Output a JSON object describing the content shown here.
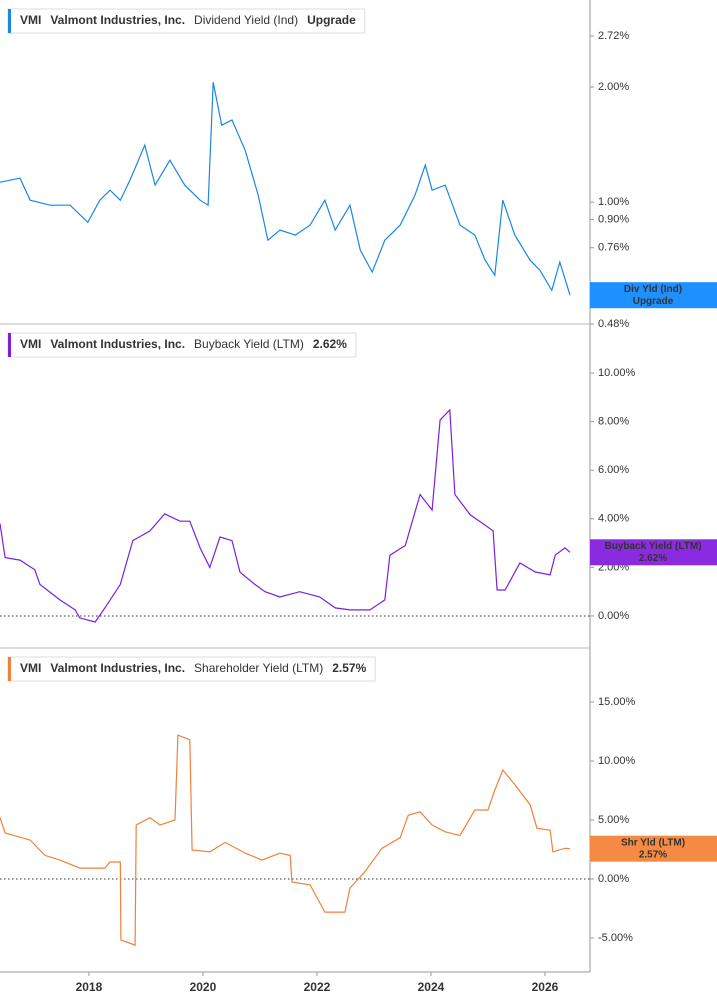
{
  "chart_data": [
    {
      "type": "line",
      "ticker": "VMI",
      "company": "Valmont Industries, Inc.",
      "title": "Dividend Yield (Ind)",
      "legend_value": "Upgrade",
      "color": "#1a87e0",
      "label_color": "#1e90ff",
      "log_scale": true,
      "end_label": {
        "name": "Div Yld (Ind)",
        "value": "Upgrade"
      },
      "xlim": [
        2016.44,
        2026.79
      ],
      "x": [
        2016.44,
        2016.79,
        2016.97,
        2017.32,
        2017.67,
        2017.98,
        2018.19,
        2018.37,
        2018.55,
        2018.72,
        2018.98,
        2019.16,
        2019.42,
        2019.68,
        2019.95,
        2020.09,
        2020.18,
        2020.33,
        2020.51,
        2020.74,
        2020.97,
        2021.14,
        2021.35,
        2021.62,
        2021.88,
        2022.14,
        2022.32,
        2022.58,
        2022.76,
        2022.97,
        2023.19,
        2023.46,
        2023.72,
        2023.9,
        2024.02,
        2024.25,
        2024.51,
        2024.77,
        2024.95,
        2025.12,
        2025.26,
        2025.47,
        2025.74,
        2025.91,
        2026.12,
        2026.26,
        2026.44
      ],
      "values": [
        1.128,
        1.155,
        1.012,
        0.982,
        0.982,
        0.886,
        1.012,
        1.075,
        1.012,
        1.142,
        1.41,
        1.108,
        1.288,
        1.108,
        1.012,
        0.982,
        2.06,
        1.59,
        1.64,
        1.368,
        1.043,
        0.795,
        0.845,
        0.82,
        0.871,
        1.012,
        0.845,
        0.982,
        0.749,
        0.656,
        0.795,
        0.871,
        1.043,
        1.25,
        1.075,
        1.108,
        0.871,
        0.82,
        0.705,
        0.644,
        1.012,
        0.82,
        0.705,
        0.664,
        0.588,
        0.697,
        0.571
      ],
      "ylim": [
        0.48,
        3.38
      ],
      "yticks": [
        {
          "value": 0.48,
          "label": "0.48%"
        },
        {
          "value": 0.76,
          "label": "0.76%"
        },
        {
          "value": 0.9,
          "label": "0.90%"
        },
        {
          "value": 1.0,
          "label": "1.00%"
        },
        {
          "value": 2.0,
          "label": "2.00%"
        },
        {
          "value": 2.72,
          "label": "2.72%"
        }
      ]
    },
    {
      "type": "line",
      "ticker": "VMI",
      "company": "Valmont Industries, Inc.",
      "title": "Buyback Yield (LTM)",
      "legend_value": "2.62%",
      "color": "#7b1fe0",
      "label_color": "#8a2be2",
      "zero_line": true,
      "end_label": {
        "name": "Buyback Yield (LTM)",
        "value": "2.62%"
      },
      "xlim": [
        2016.44,
        2026.79
      ],
      "x": [
        2016.44,
        2016.53,
        2016.79,
        2017.05,
        2017.14,
        2017.49,
        2017.76,
        2017.84,
        2018.11,
        2018.28,
        2018.55,
        2018.77,
        2019.07,
        2019.33,
        2019.6,
        2019.77,
        2019.95,
        2020.12,
        2020.3,
        2020.51,
        2020.65,
        2020.91,
        2021.09,
        2021.35,
        2021.7,
        2022.05,
        2022.32,
        2022.58,
        2022.93,
        2023.19,
        2023.28,
        2023.55,
        2023.81,
        2024.02,
        2024.16,
        2024.33,
        2024.42,
        2024.69,
        2024.95,
        2025.09,
        2025.16,
        2025.3,
        2025.56,
        2025.83,
        2026.09,
        2026.18,
        2026.35,
        2026.44
      ],
      "values": [
        3.8,
        2.4,
        2.3,
        1.9,
        1.3,
        0.66,
        0.25,
        -0.08,
        -0.25,
        0.33,
        1.3,
        3.1,
        3.5,
        4.2,
        3.9,
        3.9,
        2.8,
        2.0,
        3.25,
        3.1,
        1.8,
        1.3,
        1.0,
        0.78,
        1.0,
        0.78,
        0.33,
        0.25,
        0.25,
        0.66,
        2.5,
        2.9,
        5.0,
        4.36,
        8.07,
        8.48,
        5.0,
        4.16,
        3.74,
        3.5,
        1.07,
        1.07,
        2.18,
        1.81,
        1.69,
        2.5,
        2.8,
        2.62
      ],
      "ylim": [
        -1.32,
        12.02
      ],
      "yticks": [
        {
          "value": 0,
          "label": "0.00%"
        },
        {
          "value": 2,
          "label": "2.00%"
        },
        {
          "value": 4,
          "label": "4.00%"
        },
        {
          "value": 6,
          "label": "6.00%"
        },
        {
          "value": 8,
          "label": "8.00%"
        },
        {
          "value": 10,
          "label": "10.00%"
        }
      ]
    },
    {
      "type": "line",
      "ticker": "VMI",
      "company": "Valmont Industries, Inc.",
      "title": "Shareholder Yield (LTM)",
      "legend_value": "2.57%",
      "color": "#f0813a",
      "label_color": "#f58a42",
      "zero_line": true,
      "end_label": {
        "name": "Shr Yld (LTM)",
        "value": "2.57%"
      },
      "xlim": [
        2016.44,
        2026.79
      ],
      "xticks": [
        2018,
        2020,
        2022,
        2024,
        2026
      ],
      "x": [
        2016.44,
        2016.53,
        2016.97,
        2017.23,
        2017.49,
        2017.84,
        2018.28,
        2018.37,
        2018.55,
        2018.56,
        2018.81,
        2018.83,
        2019.07,
        2019.25,
        2019.51,
        2019.56,
        2019.77,
        2019.81,
        2020.12,
        2020.39,
        2020.74,
        2021.04,
        2021.35,
        2021.53,
        2021.56,
        2021.88,
        2022.14,
        2022.49,
        2022.58,
        2022.84,
        2023.14,
        2023.46,
        2023.6,
        2023.81,
        2024.02,
        2024.25,
        2024.51,
        2024.77,
        2025.0,
        2025.12,
        2025.26,
        2025.47,
        2025.74,
        2025.86,
        2026.09,
        2026.14,
        2026.35,
        2026.44
      ],
      "values": [
        5.2,
        3.9,
        3.3,
        2.0,
        1.6,
        0.93,
        0.93,
        1.44,
        1.44,
        -5.17,
        -5.6,
        4.58,
        5.2,
        4.58,
        5.0,
        12.2,
        11.8,
        2.46,
        2.3,
        3.1,
        2.2,
        1.6,
        2.2,
        2.0,
        -0.25,
        -0.5,
        -2.8,
        -2.8,
        -0.76,
        0.6,
        2.6,
        3.5,
        5.4,
        5.7,
        4.58,
        4.0,
        3.7,
        5.85,
        5.85,
        7.54,
        9.24,
        8.0,
        6.3,
        4.3,
        4.15,
        2.3,
        2.6,
        2.57
      ],
      "ylim": [
        -7.88,
        19.58
      ],
      "yticks": [
        {
          "value": -5,
          "label": "-5.00%"
        },
        {
          "value": 0,
          "label": "0.00%"
        },
        {
          "value": 5,
          "label": "5.00%"
        },
        {
          "value": 10,
          "label": "10.00%"
        },
        {
          "value": 15,
          "label": "15.00%"
        }
      ]
    }
  ]
}
